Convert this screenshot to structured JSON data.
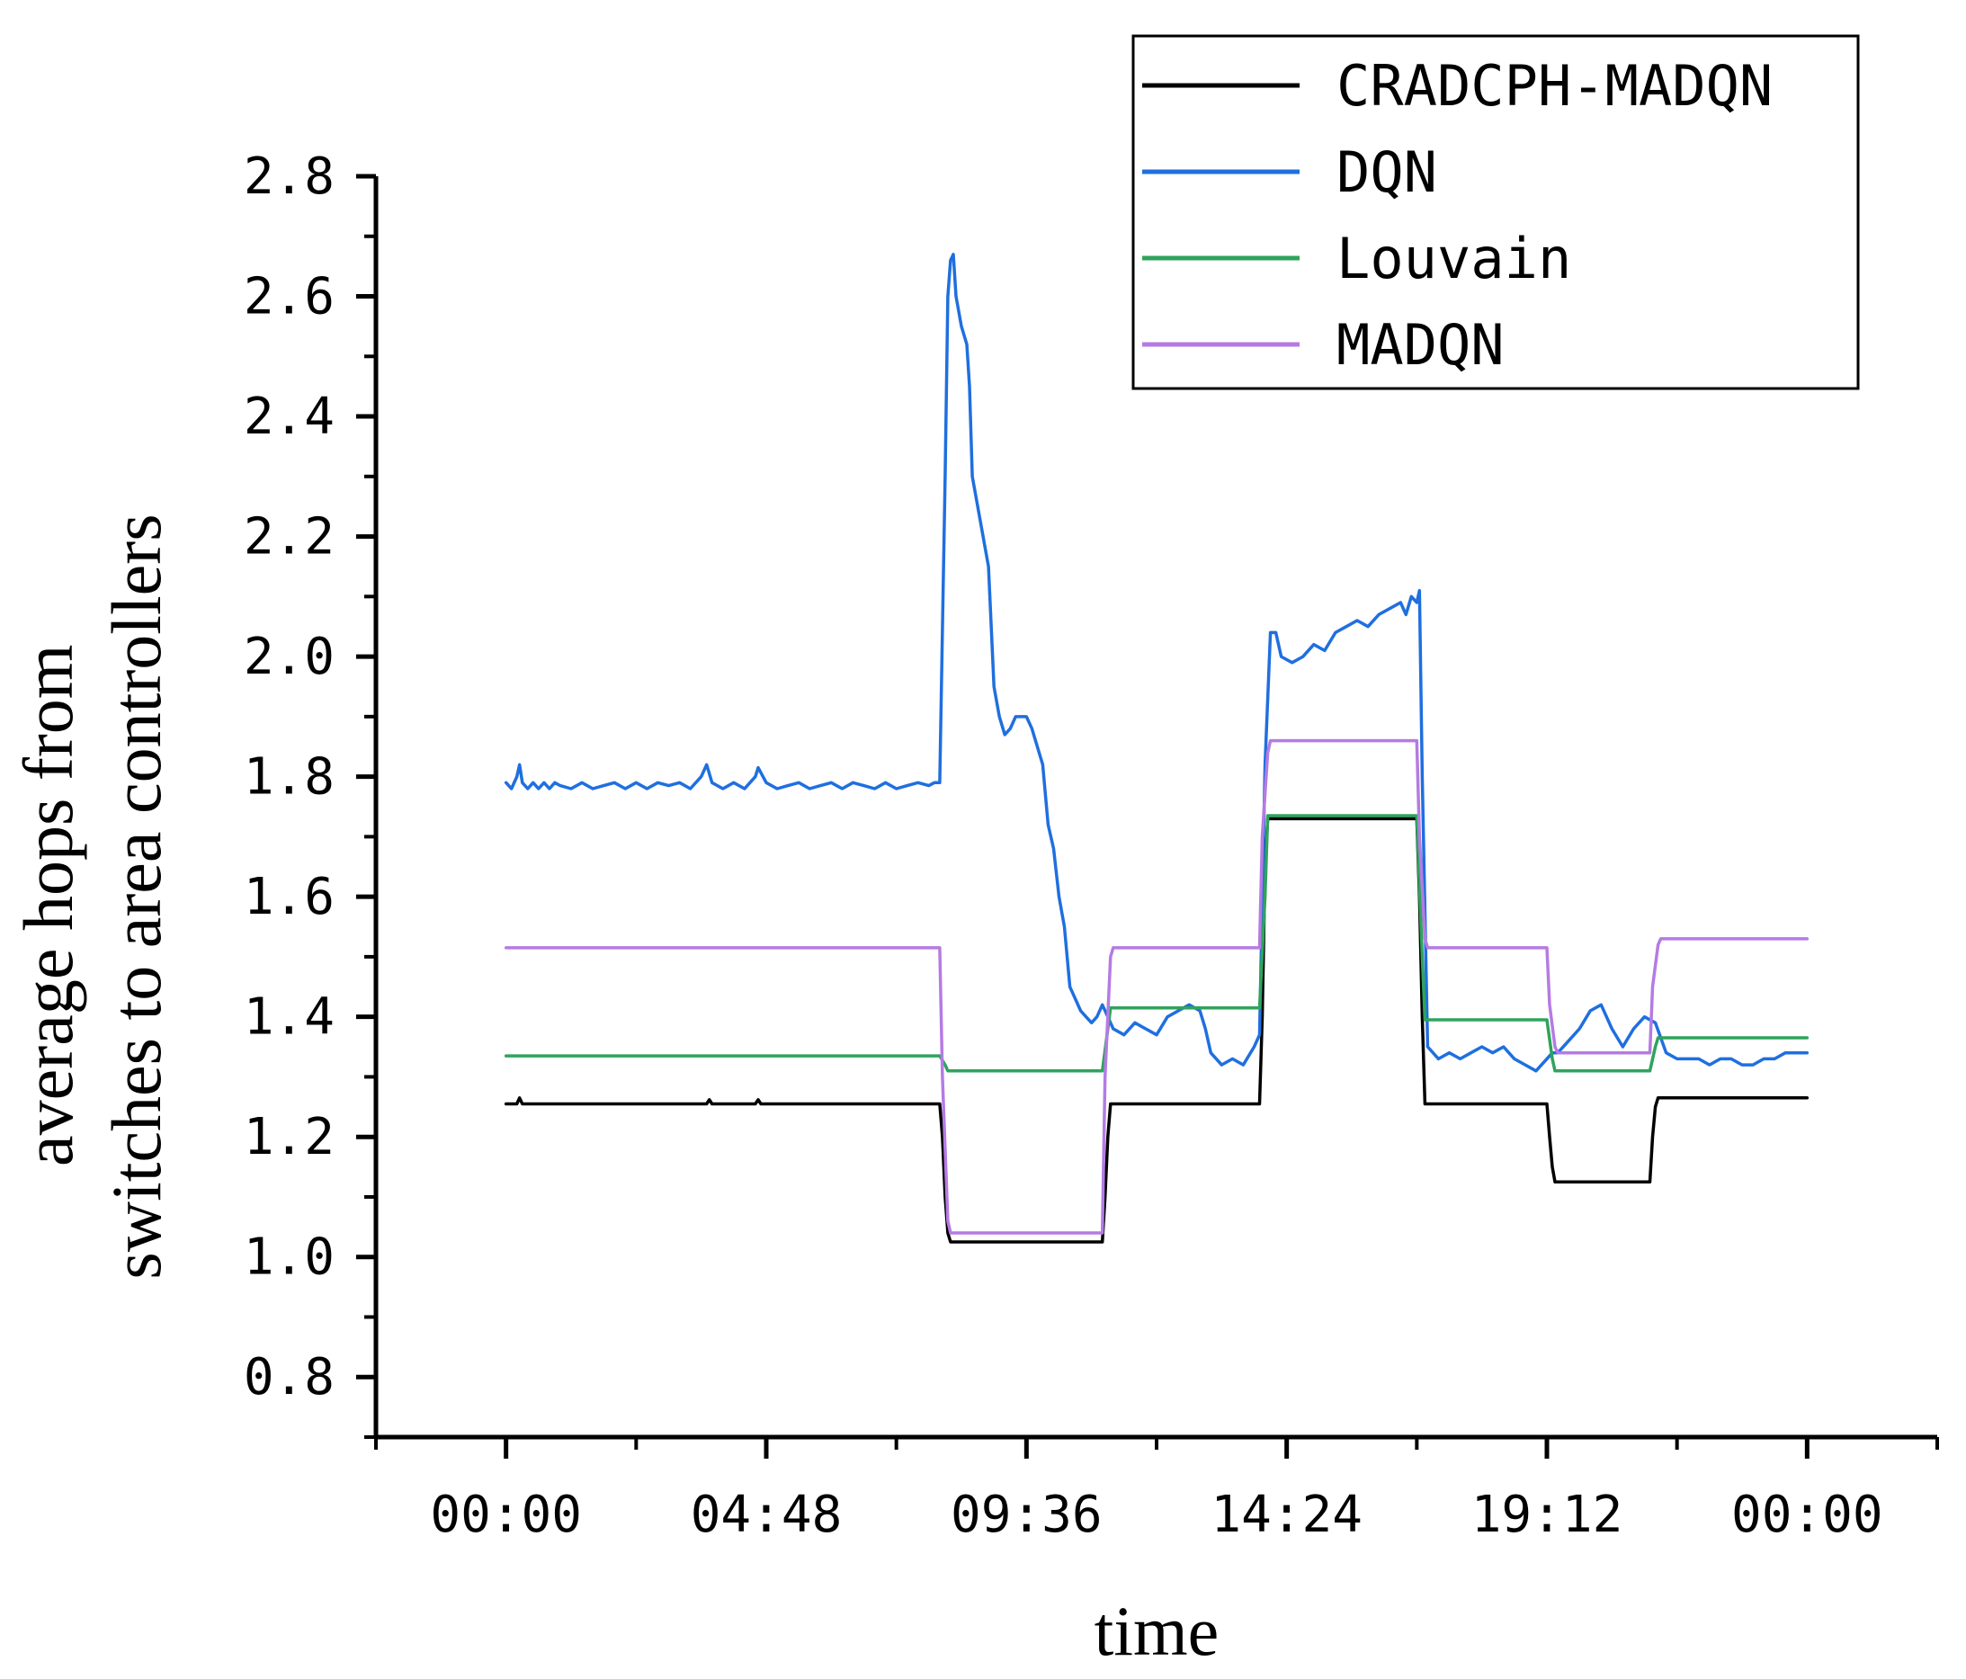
{
  "chart_data": {
    "type": "line",
    "title": "",
    "xlabel": "time",
    "ylabel_lines": [
      "average hops from",
      "switches to area controllers"
    ],
    "x_unit": "hours",
    "xlim": [
      -2.4,
      26.4
    ],
    "ylim": [
      0.7,
      2.8
    ],
    "xticks": [
      0,
      4.8,
      9.6,
      14.4,
      19.2,
      24
    ],
    "xtick_labels": [
      "00:00",
      "04:48",
      "09:36",
      "14:24",
      "19:12",
      "00:00"
    ],
    "yticks": [
      0.8,
      1.0,
      1.2,
      1.4,
      1.6,
      1.8,
      2.0,
      2.2,
      2.4,
      2.6,
      2.8
    ],
    "ytick_labels": [
      "0.8",
      "1.0",
      "1.2",
      "1.4",
      "1.6",
      "1.8",
      "2.0",
      "2.2",
      "2.4",
      "2.6",
      "2.8"
    ],
    "grid": false,
    "legend_position": "top-right",
    "series": [
      {
        "name": "CRADCPH-MADQN",
        "color": "#000000",
        "x": [
          0,
          0.2,
          0.25,
          0.3,
          3.7,
          3.75,
          3.8,
          4.6,
          4.65,
          4.7,
          8.0,
          8.05,
          8.1,
          8.15,
          8.2,
          11.0,
          11.05,
          11.1,
          11.15,
          13.9,
          13.95,
          14.0,
          14.05,
          16.8,
          16.85,
          16.9,
          16.95,
          19.2,
          19.25,
          19.3,
          19.35,
          21.1,
          21.15,
          21.2,
          21.25,
          24
        ],
        "y": [
          1.255,
          1.255,
          1.265,
          1.255,
          1.255,
          1.262,
          1.255,
          1.255,
          1.262,
          1.255,
          1.255,
          1.2,
          1.1,
          1.04,
          1.025,
          1.025,
          1.1,
          1.2,
          1.255,
          1.255,
          1.4,
          1.65,
          1.73,
          1.73,
          1.6,
          1.4,
          1.255,
          1.255,
          1.2,
          1.15,
          1.125,
          1.125,
          1.2,
          1.25,
          1.265,
          1.265
        ]
      },
      {
        "name": "DQN",
        "color": "#1f6fdf",
        "x": [
          0,
          0.1,
          0.2,
          0.25,
          0.3,
          0.4,
          0.5,
          0.6,
          0.7,
          0.8,
          0.9,
          1.0,
          1.2,
          1.4,
          1.6,
          1.8,
          2.0,
          2.2,
          2.4,
          2.6,
          2.8,
          3.0,
          3.2,
          3.4,
          3.6,
          3.7,
          3.8,
          4.0,
          4.2,
          4.4,
          4.6,
          4.65,
          4.8,
          5.0,
          5.2,
          5.4,
          5.6,
          5.8,
          6.0,
          6.2,
          6.4,
          6.6,
          6.8,
          7.0,
          7.2,
          7.4,
          7.6,
          7.8,
          7.9,
          8.0,
          8.1,
          8.15,
          8.2,
          8.25,
          8.3,
          8.4,
          8.5,
          8.55,
          8.6,
          8.7,
          8.8,
          8.9,
          9.0,
          9.1,
          9.2,
          9.3,
          9.4,
          9.5,
          9.6,
          9.7,
          9.8,
          9.9,
          10.0,
          10.1,
          10.2,
          10.3,
          10.4,
          10.5,
          10.6,
          10.7,
          10.8,
          10.9,
          11.0,
          11.1,
          11.2,
          11.4,
          11.6,
          11.8,
          12.0,
          12.2,
          12.4,
          12.6,
          12.8,
          12.9,
          13.0,
          13.2,
          13.4,
          13.6,
          13.8,
          13.9,
          14.0,
          14.1,
          14.2,
          14.3,
          14.5,
          14.7,
          14.9,
          15.1,
          15.3,
          15.5,
          15.7,
          15.9,
          16.1,
          16.3,
          16.5,
          16.6,
          16.7,
          16.8,
          16.85,
          16.9,
          17.0,
          17.2,
          17.4,
          17.6,
          17.8,
          18.0,
          18.2,
          18.4,
          18.6,
          18.8,
          19.0,
          19.2,
          19.3,
          19.4,
          19.6,
          19.8,
          20.0,
          20.2,
          20.4,
          20.6,
          20.8,
          21.0,
          21.2,
          21.4,
          21.6,
          21.8,
          22.0,
          22.2,
          22.4,
          22.6,
          22.8,
          23.0,
          23.2,
          23.4,
          23.6,
          23.8,
          24
        ],
        "y": [
          1.79,
          1.78,
          1.8,
          1.82,
          1.79,
          1.78,
          1.79,
          1.78,
          1.79,
          1.78,
          1.79,
          1.785,
          1.78,
          1.79,
          1.78,
          1.785,
          1.79,
          1.78,
          1.79,
          1.78,
          1.79,
          1.785,
          1.79,
          1.78,
          1.8,
          1.82,
          1.79,
          1.78,
          1.79,
          1.78,
          1.8,
          1.815,
          1.79,
          1.78,
          1.785,
          1.79,
          1.78,
          1.785,
          1.79,
          1.78,
          1.79,
          1.785,
          1.78,
          1.79,
          1.78,
          1.785,
          1.79,
          1.785,
          1.79,
          1.79,
          2.3,
          2.6,
          2.66,
          2.67,
          2.6,
          2.55,
          2.52,
          2.45,
          2.3,
          2.25,
          2.2,
          2.15,
          1.95,
          1.9,
          1.87,
          1.88,
          1.9,
          1.9,
          1.9,
          1.88,
          1.85,
          1.82,
          1.72,
          1.68,
          1.6,
          1.55,
          1.45,
          1.43,
          1.41,
          1.4,
          1.39,
          1.4,
          1.42,
          1.4,
          1.38,
          1.37,
          1.39,
          1.38,
          1.37,
          1.4,
          1.41,
          1.42,
          1.41,
          1.38,
          1.34,
          1.32,
          1.33,
          1.32,
          1.35,
          1.37,
          1.82,
          2.04,
          2.04,
          2.0,
          1.99,
          2.0,
          2.02,
          2.01,
          2.04,
          2.05,
          2.06,
          2.05,
          2.07,
          2.08,
          2.09,
          2.07,
          2.1,
          2.09,
          2.11,
          1.8,
          1.35,
          1.33,
          1.34,
          1.33,
          1.34,
          1.35,
          1.34,
          1.35,
          1.33,
          1.32,
          1.31,
          1.33,
          1.34,
          1.34,
          1.36,
          1.38,
          1.41,
          1.42,
          1.38,
          1.35,
          1.38,
          1.4,
          1.39,
          1.34,
          1.33,
          1.33,
          1.33,
          1.32,
          1.33,
          1.33,
          1.32,
          1.32,
          1.33,
          1.33,
          1.34,
          1.34,
          1.34
        ]
      },
      {
        "name": "Louvain",
        "color": "#2fa35c",
        "x": [
          0,
          8.0,
          8.1,
          8.15,
          11.0,
          11.1,
          11.15,
          13.9,
          14.0,
          14.05,
          16.8,
          16.9,
          16.95,
          19.2,
          19.3,
          19.35,
          21.1,
          21.2,
          21.25,
          24
        ],
        "y": [
          1.335,
          1.335,
          1.32,
          1.31,
          1.31,
          1.38,
          1.415,
          1.415,
          1.6,
          1.735,
          1.735,
          1.5,
          1.395,
          1.395,
          1.33,
          1.31,
          1.31,
          1.35,
          1.365,
          1.365
        ]
      },
      {
        "name": "MADQN",
        "color": "#b57be3",
        "x": [
          0,
          8.0,
          8.05,
          8.15,
          8.2,
          11.0,
          11.05,
          11.15,
          11.2,
          13.9,
          13.95,
          14.05,
          14.1,
          16.8,
          16.85,
          16.95,
          17.0,
          19.2,
          19.25,
          19.35,
          19.4,
          21.1,
          21.15,
          21.25,
          21.3,
          24
        ],
        "y": [
          1.515,
          1.515,
          1.3,
          1.06,
          1.04,
          1.04,
          1.3,
          1.5,
          1.515,
          1.515,
          1.7,
          1.84,
          1.86,
          1.86,
          1.7,
          1.53,
          1.515,
          1.515,
          1.42,
          1.35,
          1.34,
          1.34,
          1.45,
          1.52,
          1.53,
          1.53
        ]
      }
    ]
  }
}
